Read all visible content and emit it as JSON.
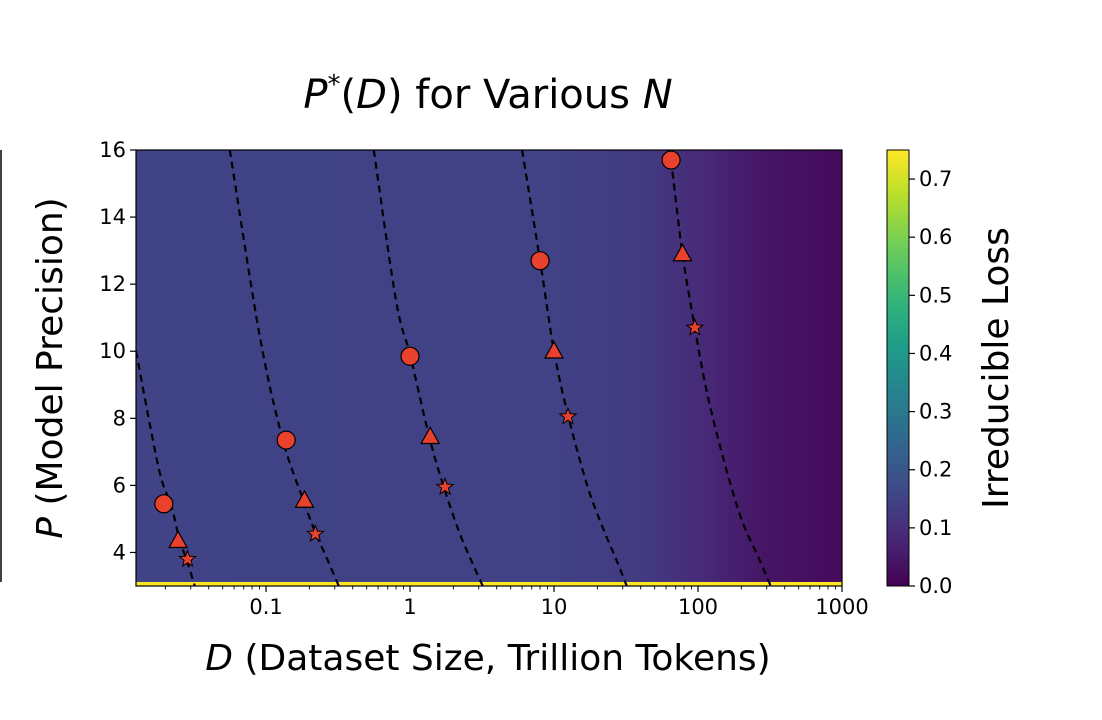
{
  "chart_data": {
    "type": "heatmap",
    "title": {
      "main": "P",
      "sup": "*",
      "open": "(",
      "arg": "D",
      "rest": ") for Various ",
      "var": "N"
    },
    "xlabel": {
      "var": "D",
      "rest": " (Dataset Size, Trillion Tokens)"
    },
    "ylabel": {
      "var": "P",
      "rest": " (Model Precision)"
    },
    "colorbar_label": "Irreducible Loss",
    "xscale": "log",
    "xlim": [
      0.0125,
      1000
    ],
    "ylim": [
      3.0,
      16.0
    ],
    "x_ticks": [
      {
        "value": 0.1,
        "label": "0.1"
      },
      {
        "value": 1,
        "label": "1"
      },
      {
        "value": 10,
        "label": "10"
      },
      {
        "value": 100,
        "label": "100"
      },
      {
        "value": 1000,
        "label": "1000"
      }
    ],
    "y_ticks": [
      {
        "value": 4,
        "label": "4"
      },
      {
        "value": 6,
        "label": "6"
      },
      {
        "value": 8,
        "label": "8"
      },
      {
        "value": 10,
        "label": "10"
      },
      {
        "value": 12,
        "label": "12"
      },
      {
        "value": 14,
        "label": "14"
      },
      {
        "value": 16,
        "label": "16"
      }
    ],
    "colorbar_ticks": [
      {
        "value": 0.0,
        "label": "0.0"
      },
      {
        "value": 0.1,
        "label": "0.1"
      },
      {
        "value": 0.2,
        "label": "0.2"
      },
      {
        "value": 0.3,
        "label": "0.3"
      },
      {
        "value": 0.4,
        "label": "0.4"
      },
      {
        "value": 0.5,
        "label": "0.5"
      },
      {
        "value": 0.6,
        "label": "0.6"
      },
      {
        "value": 0.7,
        "label": "0.7"
      }
    ],
    "colorbar_range": [
      0.0,
      0.75
    ],
    "colormap": "viridis",
    "heatmap_profile": {
      "base_loss": 0.15,
      "x": [
        0.0125,
        10,
        40,
        100,
        300,
        1000
      ],
      "loss": [
        0.15,
        0.145,
        0.13,
        0.09,
        0.04,
        0.02
      ],
      "high_loss_band_p": [
        3.0,
        3.12
      ],
      "high_loss_band_value": 0.75
    },
    "curves": [
      {
        "points": [
          [
            0.0125,
            10.0
          ],
          [
            0.018,
            6.5
          ],
          [
            0.022,
            5.4
          ],
          [
            0.025,
            4.4
          ],
          [
            0.028,
            3.8
          ],
          [
            0.032,
            3.0
          ]
        ]
      },
      {
        "points": [
          [
            0.056,
            16.0
          ],
          [
            0.09,
            10.5
          ],
          [
            0.13,
            7.4
          ],
          [
            0.18,
            5.6
          ],
          [
            0.22,
            4.6
          ],
          [
            0.26,
            3.9
          ],
          [
            0.32,
            3.0
          ]
        ]
      },
      {
        "points": [
          [
            0.56,
            16.0
          ],
          [
            0.8,
            11.5
          ],
          [
            1.0,
            9.9
          ],
          [
            1.35,
            7.5
          ],
          [
            1.7,
            6.0
          ],
          [
            2.2,
            4.6
          ],
          [
            2.7,
            3.7
          ],
          [
            3.2,
            3.0
          ]
        ]
      },
      {
        "points": [
          [
            6.0,
            16.0
          ],
          [
            8.0,
            12.7
          ],
          [
            10.0,
            10.0
          ],
          [
            12.5,
            8.1
          ],
          [
            17.0,
            6.0
          ],
          [
            22.0,
            4.7
          ],
          [
            27.0,
            3.8
          ],
          [
            32.0,
            3.0
          ]
        ]
      },
      {
        "points": [
          [
            63.0,
            16.0
          ],
          [
            65.0,
            15.7
          ],
          [
            78.0,
            12.9
          ],
          [
            95.0,
            10.7
          ],
          [
            115.0,
            8.8
          ],
          [
            150.0,
            6.8
          ],
          [
            200.0,
            5.0
          ],
          [
            260.0,
            3.9
          ],
          [
            320.0,
            3.0
          ]
        ]
      }
    ],
    "markers": {
      "color": "#e8412e",
      "circles": [
        [
          0.0195,
          5.45
        ],
        [
          0.138,
          7.35
        ],
        [
          1.0,
          9.85
        ],
        [
          8.0,
          12.7
        ],
        [
          65.0,
          15.7
        ]
      ],
      "triangles": [
        [
          0.0245,
          4.35
        ],
        [
          0.185,
          5.55
        ],
        [
          1.38,
          7.45
        ],
        [
          10.0,
          10.0
        ],
        [
          78.0,
          12.9
        ]
      ],
      "stars": [
        [
          0.0285,
          3.8
        ],
        [
          0.22,
          4.55
        ],
        [
          1.75,
          5.95
        ],
        [
          12.5,
          8.05
        ],
        [
          95.0,
          10.7
        ]
      ]
    }
  }
}
